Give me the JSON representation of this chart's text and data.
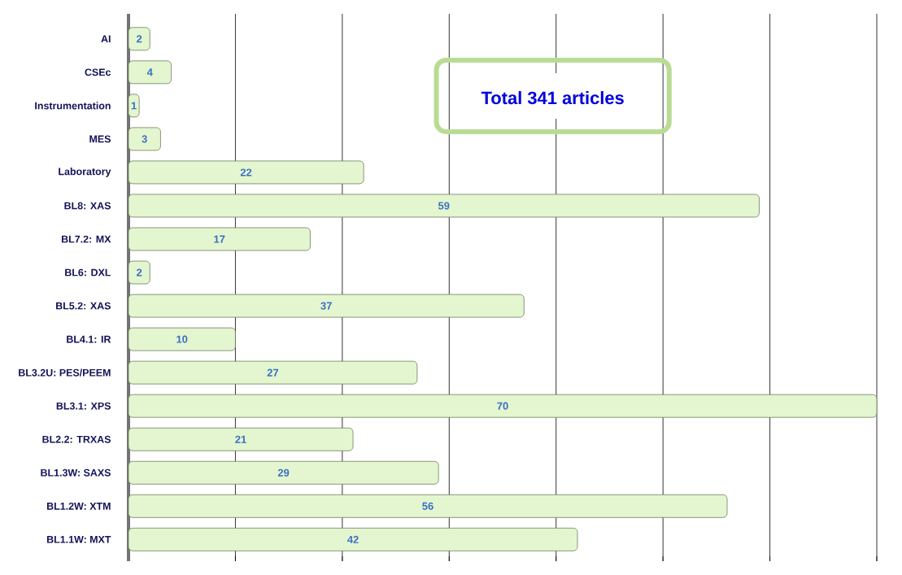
{
  "chart_data": {
    "type": "bar",
    "orientation": "horizontal",
    "categories": [
      "AI",
      "CSEc",
      "Instrumentation",
      "MES",
      "Laboratory",
      "BL8: XAS",
      "BL7.2: MX",
      "BL6: DXL",
      "BL5.2: XAS",
      "BL4.1: IR",
      "BL3.2U: PES/PEEM",
      "BL3.1: XPS",
      "BL2.2: TRXAS",
      "BL1.3W: SAXS",
      "BL1.2W: XTM",
      "BL1.1W: MXT"
    ],
    "values": [
      2,
      4,
      1,
      3,
      22,
      59,
      17,
      2,
      37,
      10,
      27,
      70,
      21,
      29,
      56,
      42
    ],
    "color": "#e3f6cf",
    "data_labels": true,
    "xlim": [
      0,
      70
    ],
    "xticks": [
      {
        "value": 0,
        "label": null
      },
      {
        "value": 10,
        "label": null
      },
      {
        "value": 20,
        "label": null
      },
      {
        "value": 30,
        "label": null
      },
      {
        "value": 40,
        "label": null
      },
      {
        "value": 50,
        "label": null
      },
      {
        "value": 60,
        "label": null
      },
      {
        "value": 70,
        "label": null
      }
    ],
    "tick_labels": "y",
    "grid": "x",
    "annotations": [
      "Total 341 articles"
    ]
  }
}
